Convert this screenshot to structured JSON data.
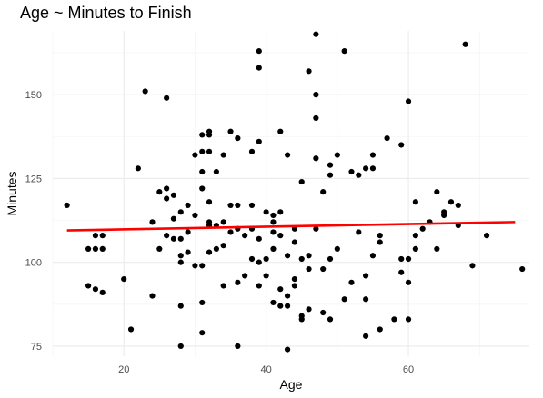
{
  "chart_data": {
    "type": "scatter",
    "title": "Age ~ Minutes to Finish",
    "xlabel": "Age",
    "ylabel": "Minutes",
    "xlim": [
      10,
      77
    ],
    "ylim": [
      72,
      169
    ],
    "x_ticks": [
      20,
      40,
      60
    ],
    "y_ticks": [
      75,
      100,
      125,
      150
    ],
    "grid": true,
    "legend": "none",
    "colors": {
      "points": "#000000",
      "trend": "#ff0000",
      "grid_major": "#ebebeb",
      "grid_minor": "#f5f5f5"
    },
    "trend_line": {
      "x": [
        12,
        75
      ],
      "y": [
        109.5,
        112
      ]
    },
    "points": [
      {
        "x": 12,
        "y": 117
      },
      {
        "x": 15,
        "y": 104
      },
      {
        "x": 16,
        "y": 104
      },
      {
        "x": 16,
        "y": 108
      },
      {
        "x": 17,
        "y": 104
      },
      {
        "x": 17,
        "y": 108
      },
      {
        "x": 15,
        "y": 93
      },
      {
        "x": 16,
        "y": 92
      },
      {
        "x": 17,
        "y": 91
      },
      {
        "x": 20,
        "y": 95
      },
      {
        "x": 21,
        "y": 80
      },
      {
        "x": 22,
        "y": 128
      },
      {
        "x": 23,
        "y": 151
      },
      {
        "x": 24,
        "y": 112
      },
      {
        "x": 24,
        "y": 90
      },
      {
        "x": 25,
        "y": 121
      },
      {
        "x": 25,
        "y": 104
      },
      {
        "x": 26,
        "y": 149
      },
      {
        "x": 26,
        "y": 122
      },
      {
        "x": 26,
        "y": 119
      },
      {
        "x": 26,
        "y": 108
      },
      {
        "x": 27,
        "y": 120
      },
      {
        "x": 27,
        "y": 113
      },
      {
        "x": 27,
        "y": 107
      },
      {
        "x": 28,
        "y": 75
      },
      {
        "x": 28,
        "y": 87
      },
      {
        "x": 28,
        "y": 100
      },
      {
        "x": 28,
        "y": 102
      },
      {
        "x": 28,
        "y": 107
      },
      {
        "x": 28,
        "y": 115
      },
      {
        "x": 29,
        "y": 103
      },
      {
        "x": 29,
        "y": 109
      },
      {
        "x": 29,
        "y": 117
      },
      {
        "x": 30,
        "y": 114
      },
      {
        "x": 30,
        "y": 99
      },
      {
        "x": 30,
        "y": 132
      },
      {
        "x": 31,
        "y": 79
      },
      {
        "x": 31,
        "y": 88
      },
      {
        "x": 31,
        "y": 99
      },
      {
        "x": 31,
        "y": 122
      },
      {
        "x": 31,
        "y": 127
      },
      {
        "x": 31,
        "y": 133
      },
      {
        "x": 31,
        "y": 138
      },
      {
        "x": 32,
        "y": 103
      },
      {
        "x": 32,
        "y": 111
      },
      {
        "x": 32,
        "y": 112
      },
      {
        "x": 32,
        "y": 118
      },
      {
        "x": 32,
        "y": 133
      },
      {
        "x": 32,
        "y": 138
      },
      {
        "x": 32,
        "y": 139
      },
      {
        "x": 33,
        "y": 104
      },
      {
        "x": 33,
        "y": 111
      },
      {
        "x": 33,
        "y": 127
      },
      {
        "x": 34,
        "y": 93
      },
      {
        "x": 34,
        "y": 105
      },
      {
        "x": 34,
        "y": 112
      },
      {
        "x": 34,
        "y": 132
      },
      {
        "x": 35,
        "y": 109
      },
      {
        "x": 35,
        "y": 117
      },
      {
        "x": 35,
        "y": 139
      },
      {
        "x": 36,
        "y": 75
      },
      {
        "x": 36,
        "y": 94
      },
      {
        "x": 36,
        "y": 110
      },
      {
        "x": 36,
        "y": 117
      },
      {
        "x": 36,
        "y": 137
      },
      {
        "x": 37,
        "y": 96
      },
      {
        "x": 37,
        "y": 108
      },
      {
        "x": 38,
        "y": 101
      },
      {
        "x": 38,
        "y": 110
      },
      {
        "x": 38,
        "y": 117
      },
      {
        "x": 38,
        "y": 133
      },
      {
        "x": 39,
        "y": 93
      },
      {
        "x": 39,
        "y": 100
      },
      {
        "x": 39,
        "y": 107
      },
      {
        "x": 39,
        "y": 136
      },
      {
        "x": 39,
        "y": 158
      },
      {
        "x": 39,
        "y": 163
      },
      {
        "x": 40,
        "y": 96
      },
      {
        "x": 40,
        "y": 101
      },
      {
        "x": 40,
        "y": 115
      },
      {
        "x": 41,
        "y": 88
      },
      {
        "x": 41,
        "y": 104
      },
      {
        "x": 41,
        "y": 109
      },
      {
        "x": 41,
        "y": 112
      },
      {
        "x": 41,
        "y": 114
      },
      {
        "x": 42,
        "y": 87
      },
      {
        "x": 42,
        "y": 92
      },
      {
        "x": 42,
        "y": 108
      },
      {
        "x": 42,
        "y": 115
      },
      {
        "x": 42,
        "y": 139
      },
      {
        "x": 43,
        "y": 74
      },
      {
        "x": 43,
        "y": 87
      },
      {
        "x": 43,
        "y": 90
      },
      {
        "x": 43,
        "y": 102
      },
      {
        "x": 43,
        "y": 132
      },
      {
        "x": 44,
        "y": 93
      },
      {
        "x": 44,
        "y": 95
      },
      {
        "x": 44,
        "y": 106
      },
      {
        "x": 44,
        "y": 110
      },
      {
        "x": 45,
        "y": 83
      },
      {
        "x": 45,
        "y": 84
      },
      {
        "x": 45,
        "y": 101
      },
      {
        "x": 45,
        "y": 124
      },
      {
        "x": 46,
        "y": 86
      },
      {
        "x": 46,
        "y": 98
      },
      {
        "x": 46,
        "y": 102
      },
      {
        "x": 46,
        "y": 157
      },
      {
        "x": 47,
        "y": 110
      },
      {
        "x": 47,
        "y": 131
      },
      {
        "x": 47,
        "y": 143
      },
      {
        "x": 47,
        "y": 150
      },
      {
        "x": 47,
        "y": 168
      },
      {
        "x": 48,
        "y": 85
      },
      {
        "x": 48,
        "y": 98
      },
      {
        "x": 48,
        "y": 121
      },
      {
        "x": 49,
        "y": 83
      },
      {
        "x": 49,
        "y": 101
      },
      {
        "x": 49,
        "y": 126
      },
      {
        "x": 49,
        "y": 129
      },
      {
        "x": 50,
        "y": 104
      },
      {
        "x": 50,
        "y": 132
      },
      {
        "x": 51,
        "y": 89
      },
      {
        "x": 51,
        "y": 163
      },
      {
        "x": 52,
        "y": 94
      },
      {
        "x": 52,
        "y": 127
      },
      {
        "x": 53,
        "y": 109
      },
      {
        "x": 53,
        "y": 126
      },
      {
        "x": 54,
        "y": 96
      },
      {
        "x": 54,
        "y": 89
      },
      {
        "x": 54,
        "y": 78
      },
      {
        "x": 54,
        "y": 128
      },
      {
        "x": 55,
        "y": 102
      },
      {
        "x": 55,
        "y": 128
      },
      {
        "x": 55,
        "y": 132
      },
      {
        "x": 56,
        "y": 80
      },
      {
        "x": 56,
        "y": 106
      },
      {
        "x": 56,
        "y": 108
      },
      {
        "x": 57,
        "y": 137
      },
      {
        "x": 58,
        "y": 83
      },
      {
        "x": 59,
        "y": 135
      },
      {
        "x": 59,
        "y": 101
      },
      {
        "x": 59,
        "y": 97
      },
      {
        "x": 60,
        "y": 94
      },
      {
        "x": 60,
        "y": 101
      },
      {
        "x": 60,
        "y": 83
      },
      {
        "x": 60,
        "y": 148
      },
      {
        "x": 61,
        "y": 108
      },
      {
        "x": 61,
        "y": 104
      },
      {
        "x": 61,
        "y": 118
      },
      {
        "x": 62,
        "y": 110
      },
      {
        "x": 63,
        "y": 112
      },
      {
        "x": 64,
        "y": 104
      },
      {
        "x": 64,
        "y": 121
      },
      {
        "x": 65,
        "y": 115
      },
      {
        "x": 65,
        "y": 114
      },
      {
        "x": 66,
        "y": 118
      },
      {
        "x": 67,
        "y": 111
      },
      {
        "x": 67,
        "y": 117
      },
      {
        "x": 68,
        "y": 165
      },
      {
        "x": 69,
        "y": 99
      },
      {
        "x": 71,
        "y": 108
      },
      {
        "x": 76,
        "y": 98
      }
    ]
  }
}
